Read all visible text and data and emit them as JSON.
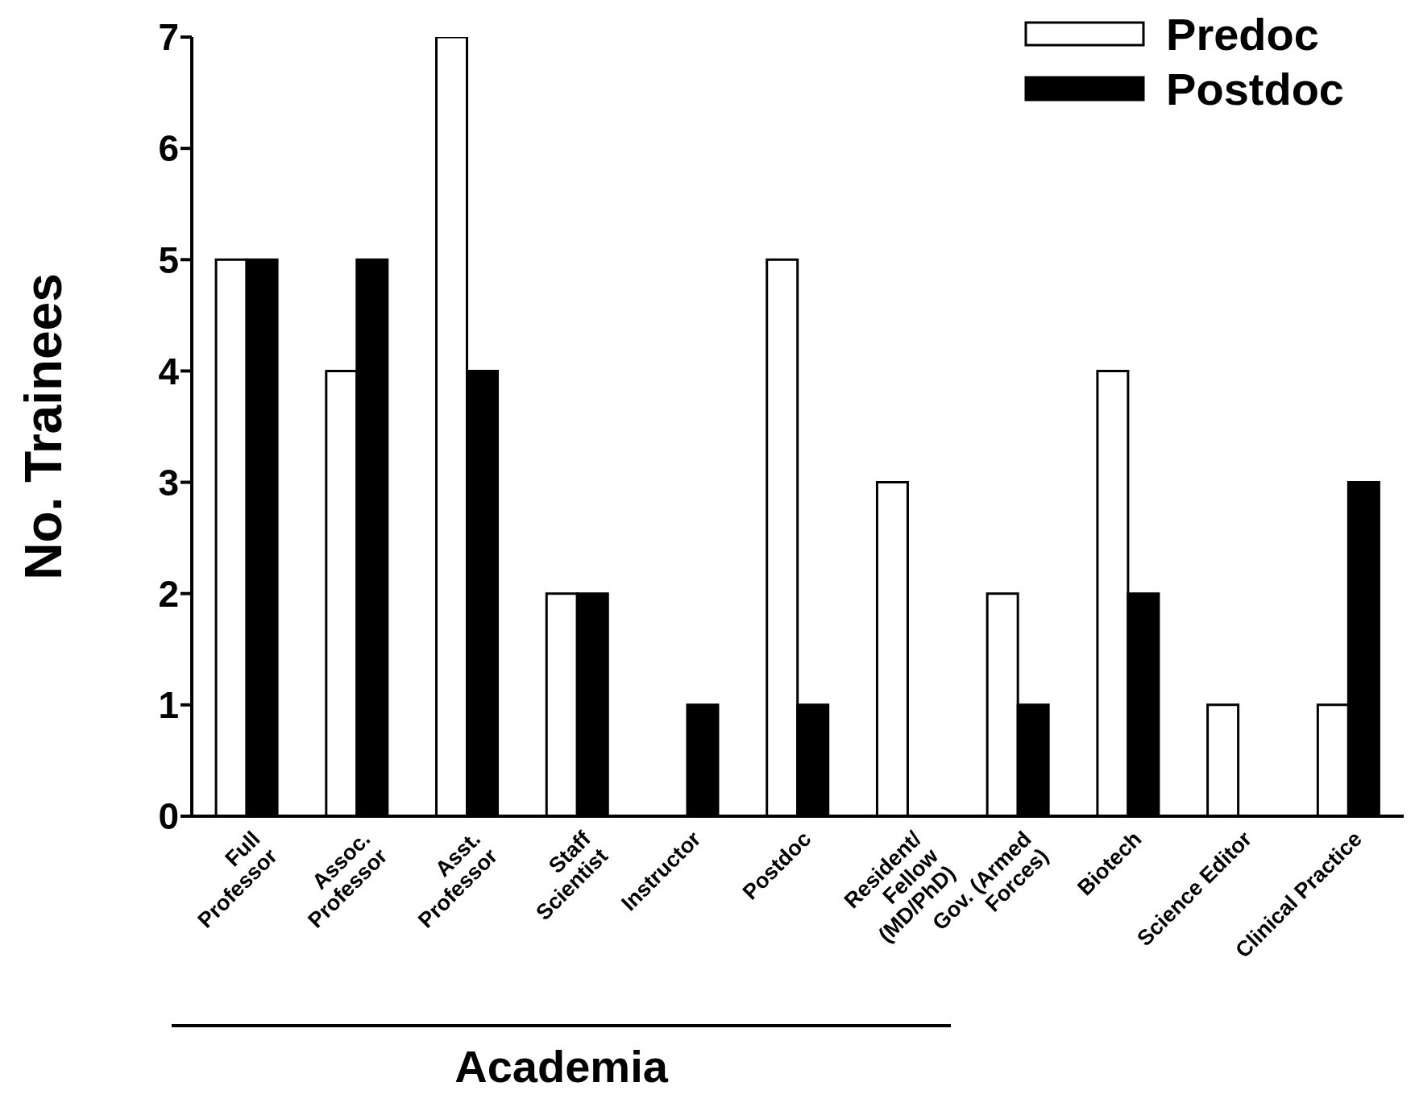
{
  "chart_data": {
    "type": "bar",
    "ylabel": "No. Trainees",
    "categories": [
      "Full\nProfessor",
      "Assoc.\nProfessor",
      "Asst.\nProfessor",
      "Staff\nScientist",
      "Instructor",
      "Postdoc",
      "Resident/\nFellow\n(MD/PhD)",
      "Gov. (Armed\nForces)",
      "Biotech",
      "Science Editor",
      "Clinical Practice"
    ],
    "series": [
      {
        "name": "Predoc",
        "color": "#ffffff",
        "values": [
          5,
          4,
          7,
          2,
          0,
          5,
          3,
          2,
          4,
          1,
          1
        ]
      },
      {
        "name": "Postdoc",
        "color": "#000000",
        "values": [
          5,
          5,
          4,
          2,
          1,
          1,
          0,
          1,
          2,
          0,
          3
        ]
      }
    ],
    "ylim": [
      0,
      7
    ],
    "yticks": [
      0,
      1,
      2,
      3,
      4,
      5,
      6,
      7
    ],
    "grid": false,
    "legend": "top right",
    "annotations": [
      "Academia"
    ]
  }
}
